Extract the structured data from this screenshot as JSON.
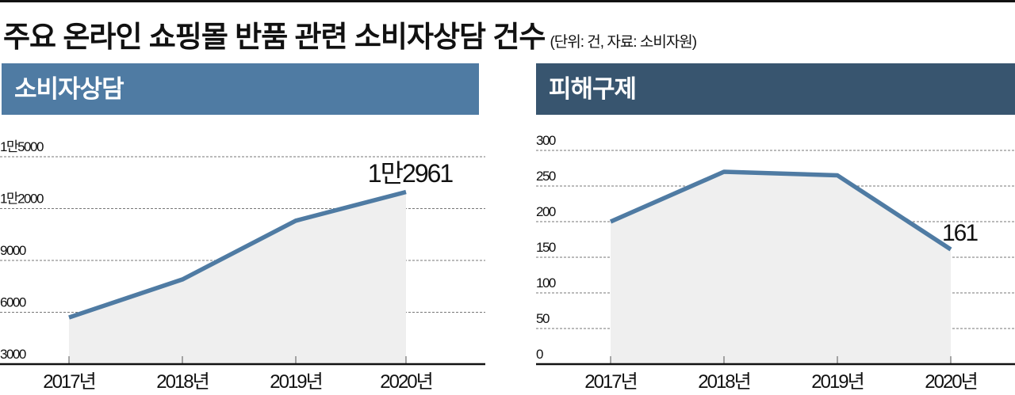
{
  "title": "주요 온라인 쇼핑몰 반품 관련 소비자상담 건수",
  "note": "(단위: 건, 자료: 소비자원)",
  "colors": {
    "line": "#4f7ba3",
    "fill": "#efefef",
    "head_left": "#4f7ba3",
    "head_right": "#38556f"
  },
  "chart_data": [
    {
      "type": "area",
      "title": "소비자상담",
      "categories": [
        "2017년",
        "2018년",
        "2019년",
        "2020년"
      ],
      "values": [
        5700,
        7900,
        11300,
        12961
      ],
      "ylim": [
        3000,
        15000
      ],
      "yticks": [
        3000,
        6000,
        9000,
        12000,
        15000
      ],
      "ytick_labels": [
        "3000",
        "6000",
        "9000",
        "1만2000",
        "1만5000"
      ],
      "annotation": {
        "index": 3,
        "text": "1만2961"
      },
      "grid": true
    },
    {
      "type": "area",
      "title": "피해구제",
      "categories": [
        "2017년",
        "2018년",
        "2019년",
        "2020년"
      ],
      "values": [
        200,
        270,
        265,
        161
      ],
      "ylim": [
        0,
        300
      ],
      "yticks": [
        0,
        50,
        100,
        150,
        200,
        250,
        300
      ],
      "ytick_labels": [
        "0",
        "50",
        "100",
        "150",
        "200",
        "250",
        "300"
      ],
      "annotation": {
        "index": 3,
        "text": "161"
      },
      "grid": true
    }
  ]
}
